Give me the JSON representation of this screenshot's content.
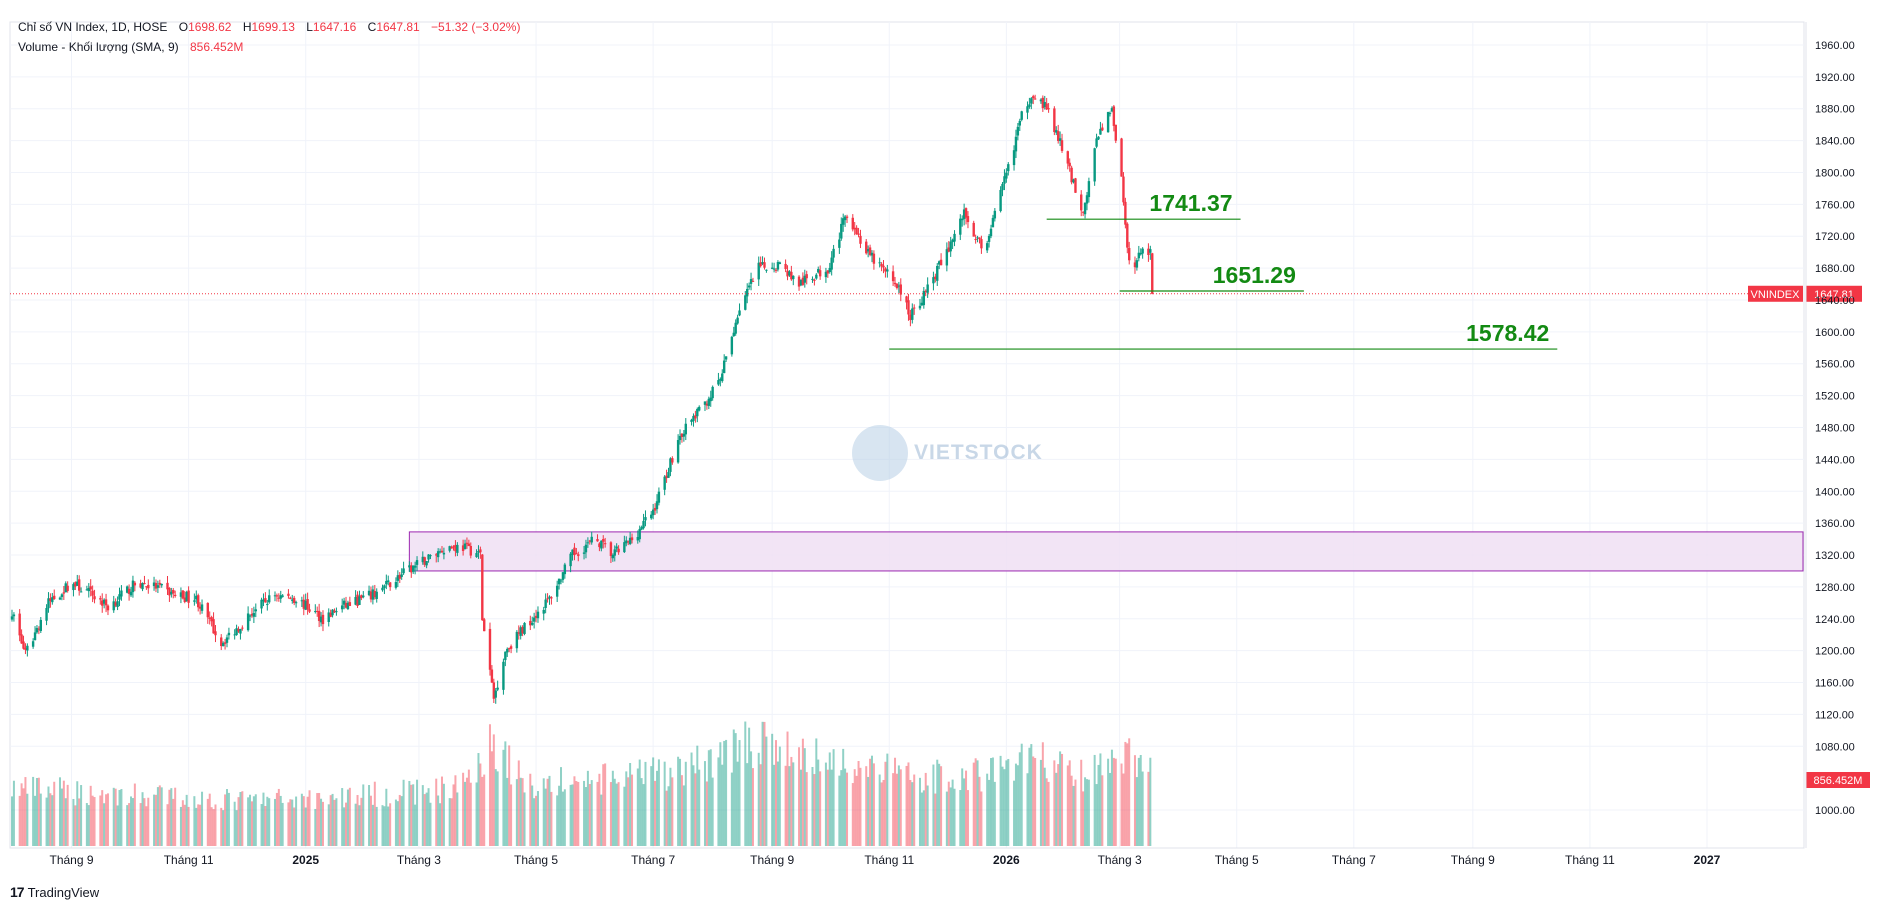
{
  "legend": {
    "title": "Chỉ số VN Index, 1D, HOSE",
    "o_label": "O",
    "o_value": "1698.62",
    "h_label": "H",
    "h_value": "1699.13",
    "l_label": "L",
    "l_value": "1647.16",
    "c_label": "C",
    "c_value": "1647.81",
    "change": "−51.32 (−3.02%)",
    "volume_title": "Volume - Khối lượng (SMA, 9)",
    "volume_value": "856.452M"
  },
  "brand": {
    "logo": "17",
    "name": "TradingView"
  },
  "watermark": {
    "text": "VIETSTOCK"
  },
  "colors": {
    "up": "#089981",
    "down": "#f23645",
    "zone_fill": "#f0dff3",
    "zone_border": "#9c27b0",
    "annotation": "#138a13"
  },
  "chart_data": {
    "type": "candlestick",
    "symbol": "VNINDEX",
    "y_range": [
      990,
      1970
    ],
    "price_ticks": [
      "1960.00",
      "1920.00",
      "1880.00",
      "1840.00",
      "1800.00",
      "1760.00",
      "1720.00",
      "1680.00",
      "1640.00",
      "1600.00",
      "1560.00",
      "1520.00",
      "1480.00",
      "1440.00",
      "1400.00",
      "1360.00",
      "1320.00",
      "1280.00",
      "1240.00",
      "1200.00",
      "1160.00",
      "1120.00",
      "1080.00",
      "1000.00"
    ],
    "x_range": [
      "2024-08-01",
      "2027-02-20"
    ],
    "x_ticks": [
      {
        "label": "Tháng 9",
        "date": "2024-09-01",
        "bold": false
      },
      {
        "label": "Tháng 11",
        "date": "2024-11-01",
        "bold": false
      },
      {
        "label": "2025",
        "date": "2025-01-01",
        "bold": true
      },
      {
        "label": "Tháng 3",
        "date": "2025-03-01",
        "bold": false
      },
      {
        "label": "Tháng 5",
        "date": "2025-05-01",
        "bold": false
      },
      {
        "label": "Tháng 7",
        "date": "2025-07-01",
        "bold": false
      },
      {
        "label": "Tháng 9",
        "date": "2025-09-01",
        "bold": false
      },
      {
        "label": "Tháng 11",
        "date": "2025-11-01",
        "bold": false
      },
      {
        "label": "2026",
        "date": "2026-01-01",
        "bold": true
      },
      {
        "label": "Tháng 3",
        "date": "2026-03-01",
        "bold": false
      },
      {
        "label": "Tháng 5",
        "date": "2026-05-01",
        "bold": false
      },
      {
        "label": "Tháng 7",
        "date": "2026-07-01",
        "bold": false
      },
      {
        "label": "Tháng 9",
        "date": "2026-09-01",
        "bold": false
      },
      {
        "label": "Tháng 11",
        "date": "2026-11-01",
        "bold": false
      },
      {
        "label": "2027",
        "date": "2027-01-01",
        "bold": true
      }
    ],
    "price_path": [
      [
        "2024-08-01",
        1250
      ],
      [
        "2024-08-08",
        1195
      ],
      [
        "2024-08-20",
        1260
      ],
      [
        "2024-09-01",
        1285
      ],
      [
        "2024-09-12",
        1270
      ],
      [
        "2024-09-20",
        1255
      ],
      [
        "2024-10-05",
        1285
      ],
      [
        "2024-10-15",
        1280
      ],
      [
        "2024-10-25",
        1270
      ],
      [
        "2024-11-05",
        1265
      ],
      [
        "2024-11-18",
        1210
      ],
      [
        "2024-11-25",
        1225
      ],
      [
        "2024-12-05",
        1250
      ],
      [
        "2024-12-16",
        1270
      ],
      [
        "2024-12-27",
        1265
      ],
      [
        "2025-01-10",
        1240
      ],
      [
        "2025-01-20",
        1255
      ],
      [
        "2025-02-05",
        1270
      ],
      [
        "2025-02-20",
        1295
      ],
      [
        "2025-03-05",
        1315
      ],
      [
        "2025-03-15",
        1330
      ],
      [
        "2025-03-25",
        1330
      ],
      [
        "2025-04-02",
        1320
      ],
      [
        "2025-04-03",
        1240
      ],
      [
        "2025-04-09",
        1140
      ],
      [
        "2025-04-15",
        1200
      ],
      [
        "2025-04-25",
        1230
      ],
      [
        "2025-05-08",
        1265
      ],
      [
        "2025-05-20",
        1320
      ],
      [
        "2025-06-01",
        1340
      ],
      [
        "2025-06-10",
        1320
      ],
      [
        "2025-06-20",
        1340
      ],
      [
        "2025-07-01",
        1375
      ],
      [
        "2025-07-15",
        1470
      ],
      [
        "2025-07-28",
        1510
      ],
      [
        "2025-08-05",
        1540
      ],
      [
        "2025-08-15",
        1630
      ],
      [
        "2025-08-25",
        1680
      ],
      [
        "2025-09-05",
        1685
      ],
      [
        "2025-09-15",
        1660
      ],
      [
        "2025-09-30",
        1680
      ],
      [
        "2025-10-10",
        1750
      ],
      [
        "2025-10-20",
        1700
      ],
      [
        "2025-10-28",
        1680
      ],
      [
        "2025-11-05",
        1660
      ],
      [
        "2025-11-12",
        1620
      ],
      [
        "2025-11-20",
        1650
      ],
      [
        "2025-12-01",
        1700
      ],
      [
        "2025-12-10",
        1750
      ],
      [
        "2025-12-20",
        1700
      ],
      [
        "2025-12-30",
        1780
      ],
      [
        "2026-01-10",
        1880
      ],
      [
        "2026-01-15",
        1900
      ],
      [
        "2026-01-22",
        1880
      ],
      [
        "2026-01-30",
        1830
      ],
      [
        "2026-02-10",
        1750
      ],
      [
        "2026-02-18",
        1850
      ],
      [
        "2026-02-25",
        1880
      ],
      [
        "2026-03-02",
        1790
      ],
      [
        "2026-03-05",
        1700
      ],
      [
        "2026-03-09",
        1680
      ],
      [
        "2026-03-13",
        1710
      ],
      [
        "2026-03-17",
        1698
      ]
    ],
    "last_candle": {
      "date": "2026-03-18",
      "open": 1698.62,
      "high": 1699.13,
      "low": 1647.16,
      "close": 1647.81
    },
    "volume_path": [
      [
        "2024-08-01",
        640
      ],
      [
        "2024-10-01",
        560
      ],
      [
        "2024-12-01",
        500
      ],
      [
        "2025-02-01",
        560
      ],
      [
        "2025-03-20",
        640
      ],
      [
        "2025-04-09",
        1150
      ],
      [
        "2025-04-25",
        680
      ],
      [
        "2025-06-01",
        720
      ],
      [
        "2025-07-15",
        820
      ],
      [
        "2025-08-20",
        1150
      ],
      [
        "2025-09-20",
        980
      ],
      [
        "2025-10-20",
        880
      ],
      [
        "2025-11-20",
        760
      ],
      [
        "2025-12-20",
        800
      ],
      [
        "2026-01-15",
        980
      ],
      [
        "2026-02-10",
        760
      ],
      [
        "2026-03-05",
        980
      ],
      [
        "2026-03-18",
        860
      ]
    ],
    "volume_scale_max": 1600,
    "last_price": 1647.81,
    "last_price_label": "1647.81",
    "symbol_label": "VNINDEX",
    "last_volume_label": "856.452M",
    "zone": {
      "from_date": "2025-02-24",
      "to_date": "2027-02-20",
      "low": 1300,
      "high": 1349
    },
    "levels": [
      {
        "value": 1741.37,
        "label": "1741.37",
        "from_date": "2026-01-22",
        "to_date": "2026-05-03"
      },
      {
        "value": 1651.29,
        "label": "1651.29",
        "from_date": "2026-03-01",
        "to_date": "2026-06-05"
      },
      {
        "value": 1578.42,
        "label": "1578.42",
        "from_date": "2025-11-01",
        "to_date": "2026-10-15"
      }
    ]
  }
}
